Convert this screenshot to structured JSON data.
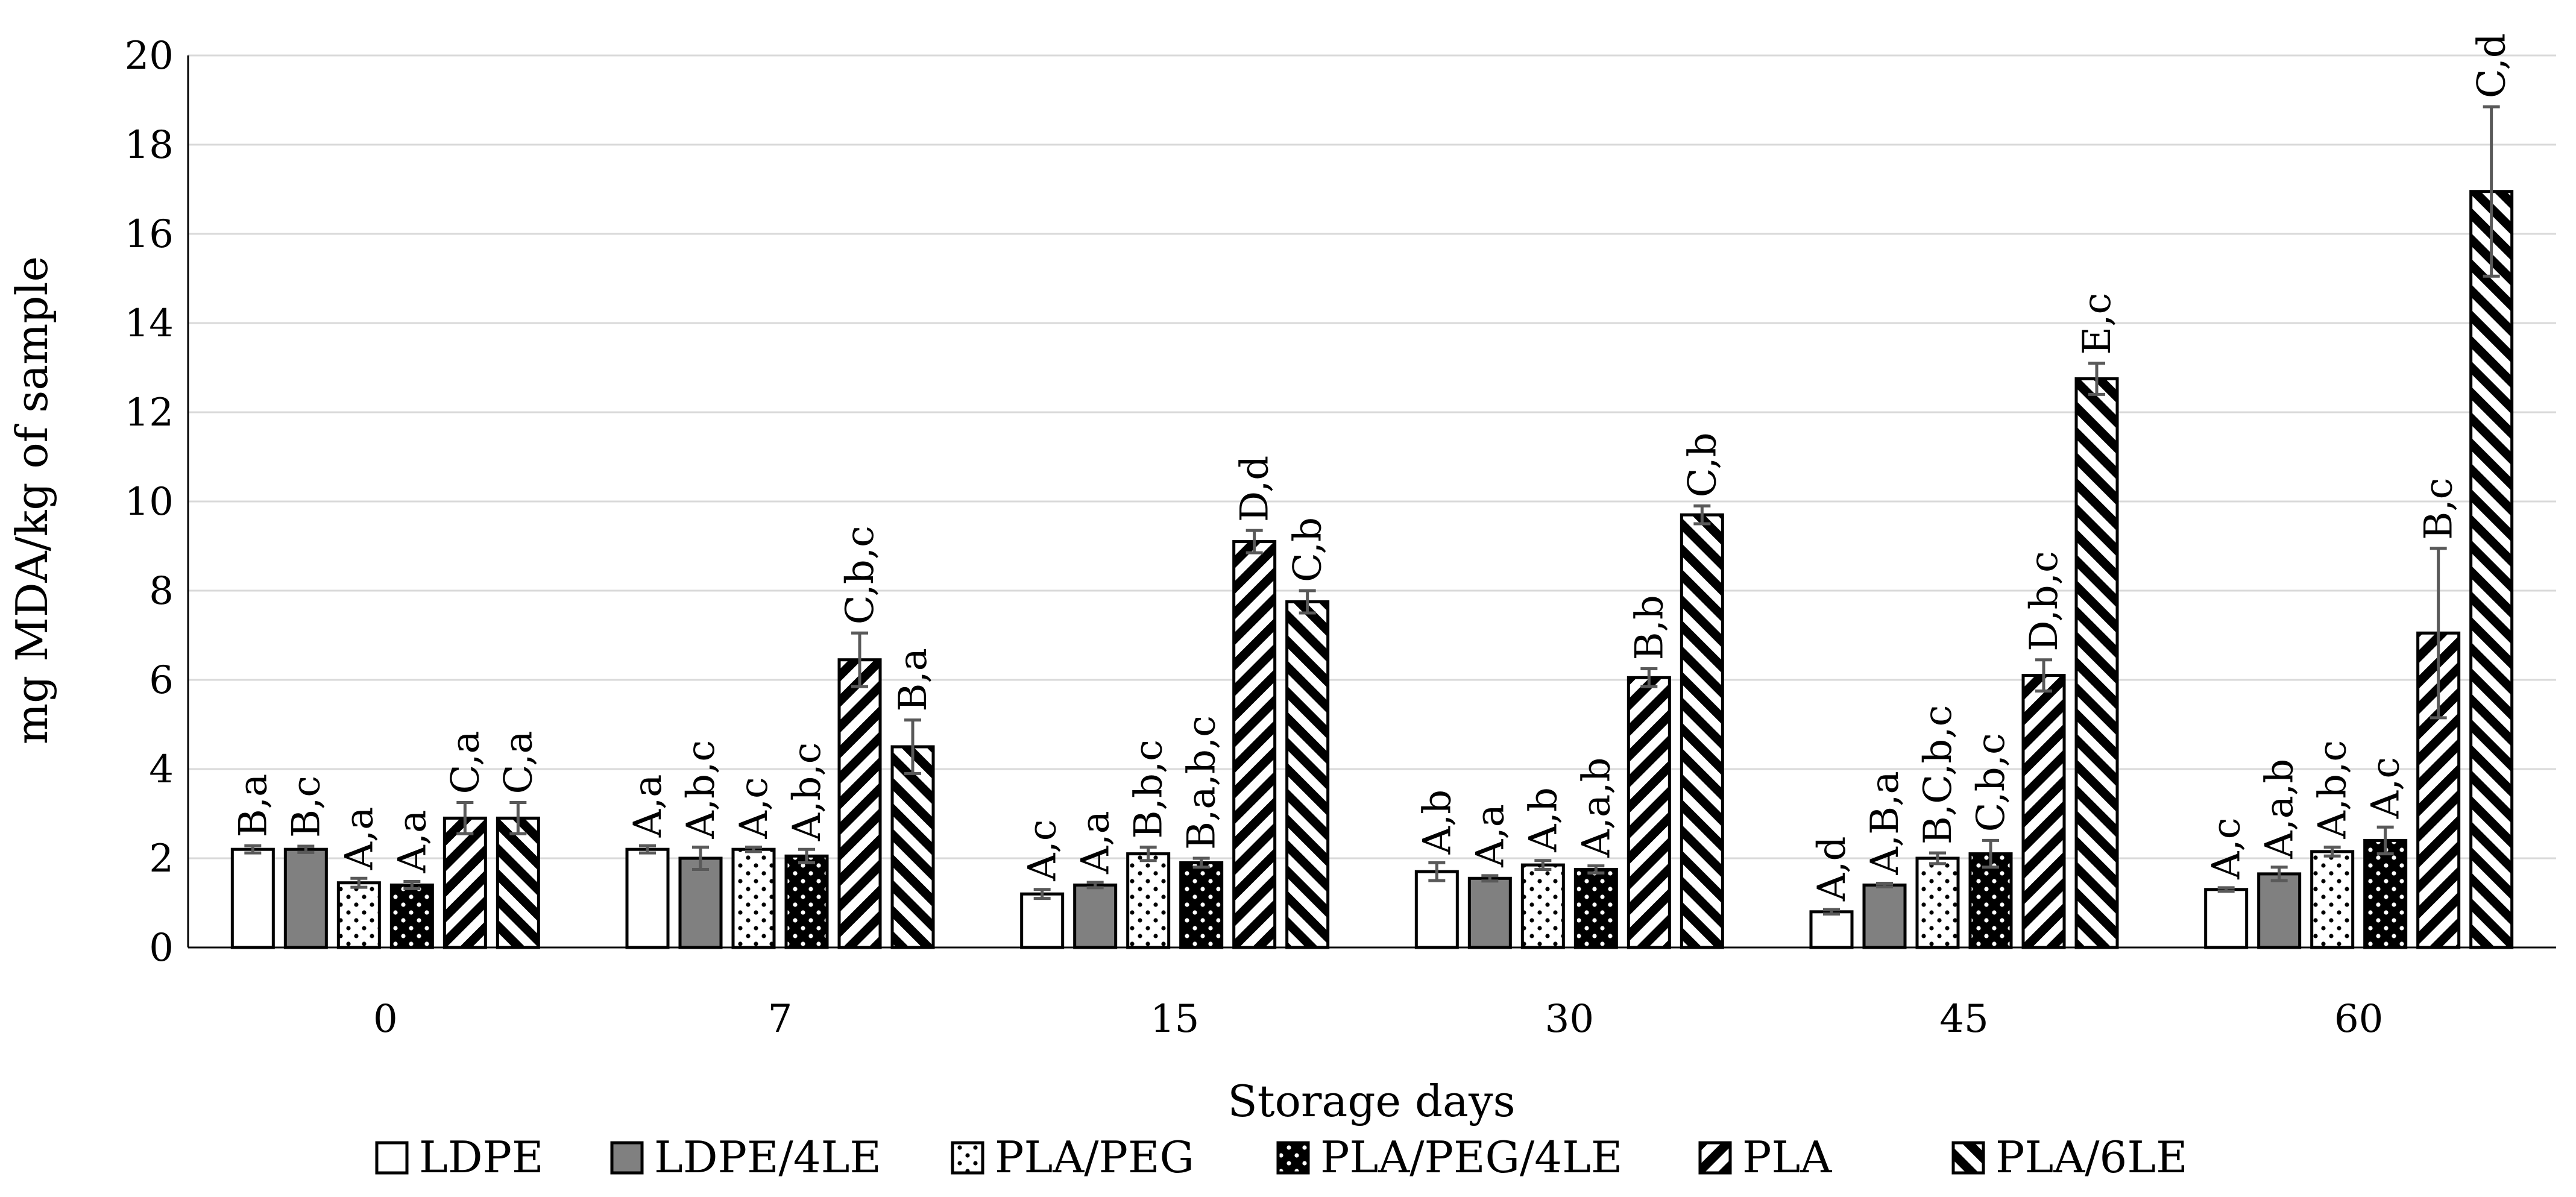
{
  "chart_data": {
    "type": "bar",
    "title": "",
    "xlabel": "Storage days",
    "ylabel": "mg MDA/kg of sample",
    "ylim": [
      0,
      20
    ],
    "yticks": [
      "0",
      "2",
      "4",
      "6",
      "8",
      "10",
      "12",
      "14",
      "16",
      "18",
      "20"
    ],
    "grid": true,
    "legend_position": "bottom",
    "categories": [
      "0",
      "7",
      "15",
      "30",
      "45",
      "60"
    ],
    "series": [
      {
        "name": "LDPE",
        "pattern": "solid-white",
        "values": [
          2.2,
          2.2,
          1.2,
          1.7,
          0.8,
          1.3
        ],
        "errors": [
          0.08,
          0.08,
          0.1,
          0.2,
          0.05,
          0.04
        ],
        "labels": [
          "B,a",
          "A,a",
          "A,c",
          "A,b",
          "A,d",
          "A,c"
        ]
      },
      {
        "name": "LDPE/4LE",
        "pattern": "solid-gray",
        "values": [
          2.2,
          2.0,
          1.4,
          1.55,
          1.4,
          1.65
        ],
        "errors": [
          0.07,
          0.25,
          0.06,
          0.06,
          0.04,
          0.15
        ],
        "labels": [
          "B,c",
          "A,b,c",
          "A,a",
          "A,a",
          "A,B,a",
          "A,a,b"
        ]
      },
      {
        "name": "PLA/PEG",
        "pattern": "dots",
        "values": [
          1.45,
          2.2,
          2.1,
          1.85,
          2.0,
          2.15
        ],
        "errors": [
          0.1,
          0.05,
          0.15,
          0.1,
          0.12,
          0.1
        ],
        "labels": [
          "A,a",
          "A,c",
          "B,b,c",
          "A,b",
          "B,C,b,c",
          "A,b,c"
        ]
      },
      {
        "name": "PLA/PEG/4LE",
        "pattern": "black-dots",
        "values": [
          1.4,
          2.05,
          1.9,
          1.75,
          2.1,
          2.4
        ],
        "errors": [
          0.08,
          0.15,
          0.1,
          0.08,
          0.3,
          0.3
        ],
        "labels": [
          "A,a",
          "A,b,c",
          "B,a,b,c",
          "A,a,b",
          "C,b,c",
          "A,c"
        ]
      },
      {
        "name": "PLA",
        "pattern": "hatch-down",
        "values": [
          2.9,
          6.45,
          9.1,
          6.05,
          6.1,
          7.05
        ],
        "errors": [
          0.35,
          0.6,
          0.25,
          0.2,
          0.35,
          1.9
        ],
        "labels": [
          "C,a",
          "C,b,c",
          "D,d",
          "B,b",
          "D,b,c",
          "B,c"
        ]
      },
      {
        "name": "PLA/6LE",
        "pattern": "hatch-up",
        "values": [
          2.9,
          4.5,
          7.75,
          9.7,
          12.75,
          16.95
        ],
        "errors": [
          0.35,
          0.6,
          0.25,
          0.2,
          0.35,
          1.9
        ],
        "labels": [
          "C,a",
          "B,a",
          "C,b",
          "C,b",
          "E,c",
          "C,d"
        ]
      }
    ]
  },
  "colors": {
    "gray_fill": "#808080",
    "bar_stroke": "#000000",
    "grid": "#d9d9d9",
    "axis": "#000000",
    "error_bar": "#595959"
  }
}
